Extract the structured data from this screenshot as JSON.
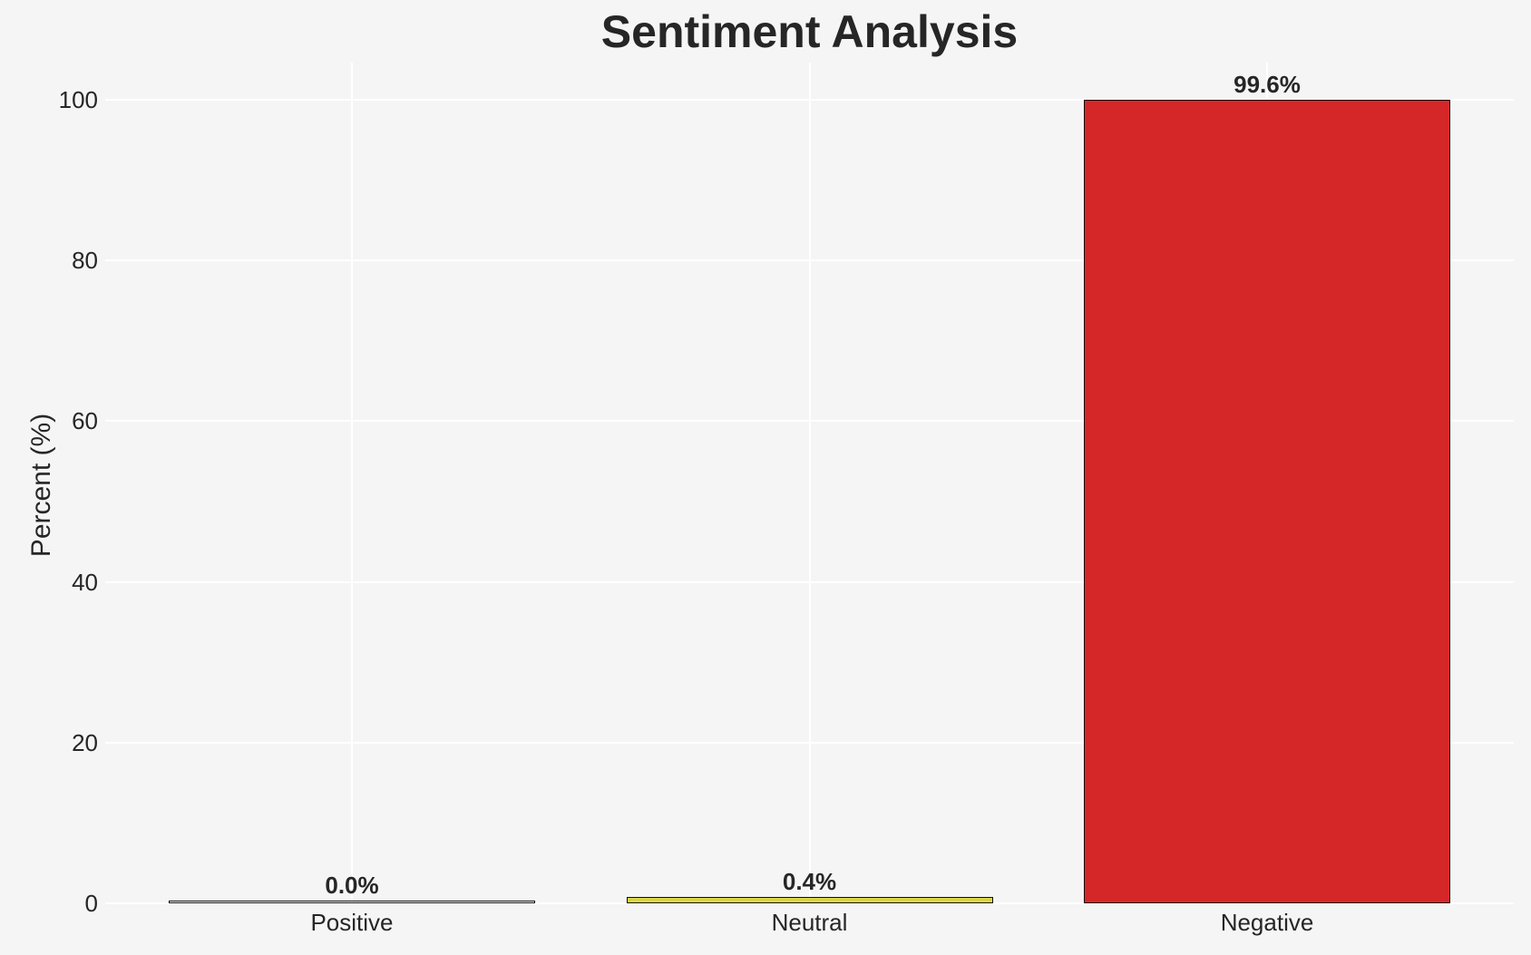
{
  "title": "Sentiment Analysis",
  "y_axis": {
    "label": "Percent (%)",
    "ticks": [
      "0",
      "20",
      "40",
      "60",
      "80",
      "100"
    ]
  },
  "chart_data": {
    "type": "bar",
    "title": "Sentiment Analysis",
    "xlabel": "",
    "ylabel": "Percent (%)",
    "categories": [
      "Positive",
      "Neutral",
      "Negative"
    ],
    "values": [
      0.0,
      0.4,
      99.6
    ],
    "value_labels": [
      "0.0%",
      "0.4%",
      "99.6%"
    ],
    "yticks": [
      0,
      20,
      40,
      60,
      80,
      100
    ],
    "ylim": [
      0,
      104.6
    ],
    "grid": true,
    "legend": "none",
    "colors": {
      "background": "#f5f5f5",
      "gridline": "#ffffff",
      "text": "#262626",
      "bar_edge": "#111111",
      "bar_fills": [
        "",
        "#d9d543",
        "#d62728"
      ]
    }
  }
}
